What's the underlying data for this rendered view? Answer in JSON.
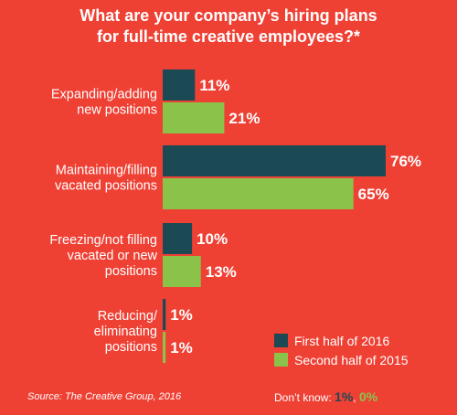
{
  "title_line1": "What are your company’s hiring plans",
  "title_line2": "for full-time creative employees?*",
  "colors": {
    "background": "#ef4034",
    "series1": "#1b4a55",
    "series2": "#8bc34a"
  },
  "chart_data": {
    "type": "bar",
    "orientation": "horizontal",
    "categories": [
      [
        "Expanding/adding",
        "new positions"
      ],
      [
        "Maintaining/filling",
        "vacated positions"
      ],
      [
        "Freezing/not filling",
        "vacated or new",
        "positions"
      ],
      [
        "Reducing/",
        "eliminating",
        "positions"
      ]
    ],
    "series": [
      {
        "name": "First half of 2016",
        "values": [
          11,
          76,
          10,
          1
        ],
        "labels": [
          "11%",
          "76%",
          "10%",
          "1%"
        ]
      },
      {
        "name": "Second half of 2015",
        "values": [
          21,
          65,
          13,
          1
        ],
        "labels": [
          "21%",
          "65%",
          "13%",
          "1%"
        ]
      }
    ],
    "xlim": [
      0,
      76
    ],
    "legend": "bottom-right",
    "grid": false
  },
  "legend": {
    "item1": "First half of 2016",
    "item2": "Second half of 2015"
  },
  "source": "Source: The Creative Group, 2016",
  "dont_know": {
    "label": "Don’t know:",
    "v1": "1%",
    "sep": ",",
    "v2": "0%"
  }
}
